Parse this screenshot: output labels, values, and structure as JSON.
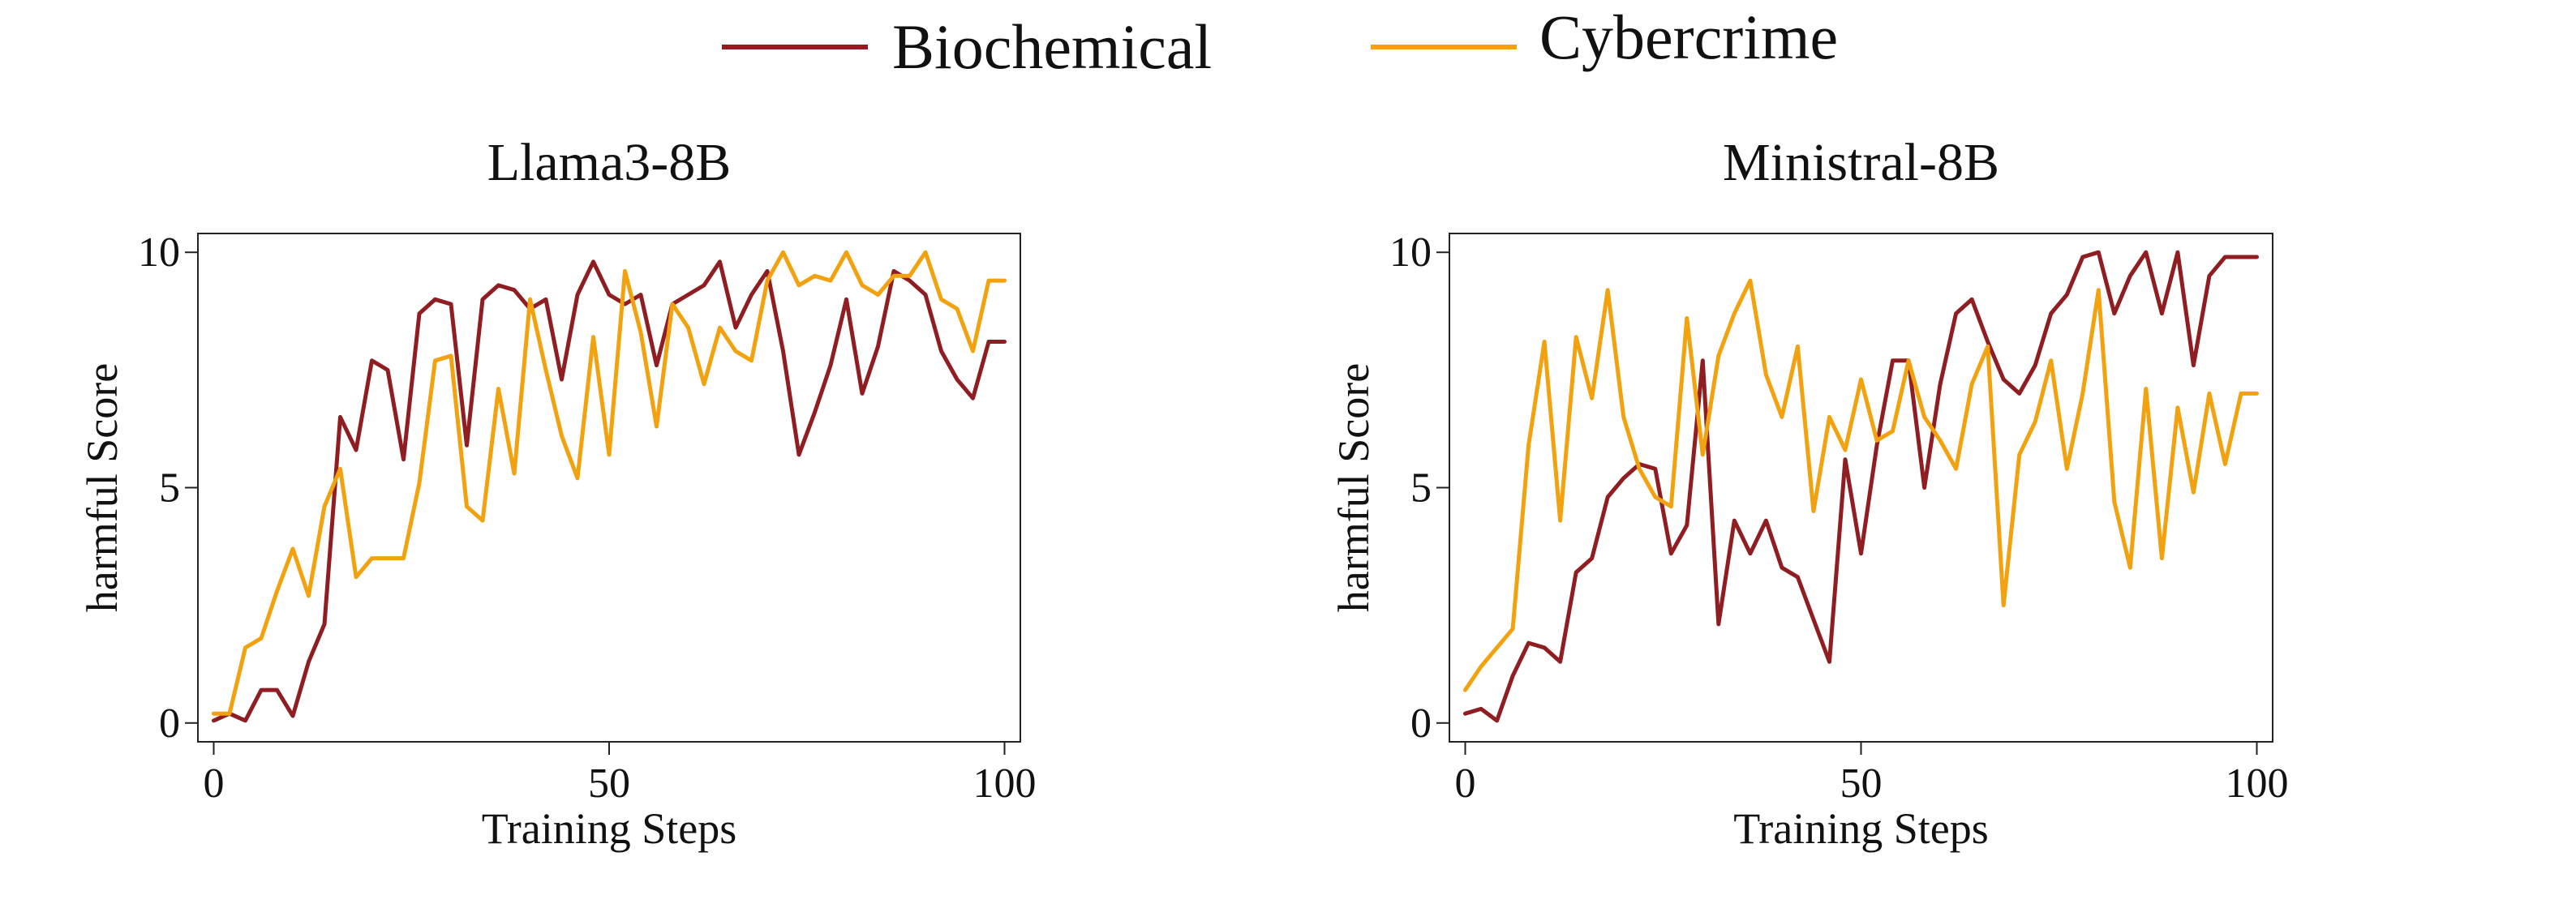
{
  "legend": [
    {
      "name": "Biochemical",
      "color": "#8f1d21"
    },
    {
      "name": "Cybercrime",
      "color": "#f2a10f"
    }
  ],
  "chart_data": [
    {
      "type": "line",
      "title": "Llama3-8B",
      "xlabel": "Training Steps",
      "ylabel": "harmful Score",
      "xlim": [
        -2,
        102
      ],
      "ylim": [
        -0.4,
        10.4
      ],
      "xticks": [
        0,
        50,
        100
      ],
      "yticks": [
        0,
        5,
        10
      ],
      "grid": false,
      "legend_position": "top-center",
      "series": [
        {
          "name": "Biochemical",
          "color": "#8f1d21",
          "x": [
            0,
            2,
            4,
            6,
            8,
            10,
            12,
            14,
            16,
            18,
            20,
            22,
            24,
            26,
            28,
            30,
            32,
            34,
            36,
            38,
            40,
            42,
            44,
            46,
            48,
            50,
            52,
            54,
            56,
            58,
            60,
            62,
            64,
            66,
            68,
            70,
            72,
            74,
            76,
            78,
            80,
            82,
            84,
            86,
            88,
            90,
            92,
            94,
            96,
            98,
            100
          ],
          "y": [
            0.05,
            0.2,
            0.05,
            0.7,
            0.7,
            0.15,
            1.3,
            2.1,
            6.5,
            5.8,
            7.7,
            7.5,
            5.6,
            8.7,
            9,
            8.9,
            5.9,
            9,
            9.3,
            9.2,
            8.8,
            9,
            7.3,
            9.1,
            9.8,
            9.1,
            8.9,
            9.1,
            7.6,
            8.9,
            9.1,
            9.3,
            9.8,
            8.4,
            9.1,
            9.6,
            7.9,
            5.7,
            6.6,
            7.6,
            9,
            7,
            8,
            9.6,
            9.4,
            9.1,
            7.9,
            7.3,
            6.9,
            8.1,
            8.1
          ]
        },
        {
          "name": "Cybercrime",
          "color": "#f2a10f",
          "x": [
            0,
            2,
            4,
            6,
            8,
            10,
            12,
            14,
            16,
            18,
            20,
            22,
            24,
            26,
            28,
            30,
            32,
            34,
            36,
            38,
            40,
            42,
            44,
            46,
            48,
            50,
            52,
            54,
            56,
            58,
            60,
            62,
            64,
            66,
            68,
            70,
            72,
            74,
            76,
            78,
            80,
            82,
            84,
            86,
            88,
            90,
            92,
            94,
            96,
            98,
            100
          ],
          "y": [
            0.2,
            0.2,
            1.6,
            1.8,
            2.8,
            3.7,
            2.7,
            4.6,
            5.4,
            3.1,
            3.5,
            3.5,
            3.5,
            5.1,
            7.7,
            7.8,
            4.6,
            4.3,
            7.1,
            5.3,
            9,
            7.5,
            6.1,
            5.2,
            8.2,
            5.7,
            9.6,
            8.3,
            6.3,
            8.9,
            8.4,
            7.2,
            8.4,
            7.9,
            7.7,
            9.4,
            10,
            9.3,
            9.5,
            9.4,
            10,
            9.3,
            9.1,
            9.5,
            9.5,
            10,
            9,
            8.8,
            7.9,
            9.4,
            9.4
          ]
        }
      ]
    },
    {
      "type": "line",
      "title": "Ministral-8B",
      "xlabel": "Training Steps",
      "ylabel": "harmful Score",
      "xlim": [
        -2,
        102
      ],
      "ylim": [
        -0.4,
        10.4
      ],
      "xticks": [
        0,
        50,
        100
      ],
      "yticks": [
        0,
        5,
        10
      ],
      "grid": false,
      "legend_position": "top-center",
      "series": [
        {
          "name": "Biochemical",
          "color": "#8f1d21",
          "x": [
            0,
            2,
            4,
            6,
            8,
            10,
            12,
            14,
            16,
            18,
            20,
            22,
            24,
            26,
            28,
            30,
            32,
            34,
            36,
            38,
            40,
            42,
            44,
            46,
            48,
            50,
            52,
            54,
            56,
            58,
            60,
            62,
            64,
            66,
            68,
            70,
            72,
            74,
            76,
            78,
            80,
            82,
            84,
            86,
            88,
            90,
            92,
            94,
            96,
            98,
            100
          ],
          "y": [
            0.2,
            0.3,
            0.05,
            1,
            1.7,
            1.6,
            1.3,
            3.2,
            3.5,
            4.8,
            5.2,
            5.5,
            5.4,
            3.6,
            4.2,
            7.7,
            2.1,
            4.3,
            3.6,
            4.3,
            3.3,
            3.1,
            2.2,
            1.3,
            5.6,
            3.6,
            5.9,
            7.7,
            7.7,
            5,
            7.2,
            8.7,
            9,
            8.1,
            7.3,
            7,
            7.6,
            8.7,
            9.1,
            9.9,
            10,
            8.7,
            9.5,
            10,
            8.7,
            10,
            7.6,
            9.5,
            9.9,
            9.9,
            9.9
          ]
        },
        {
          "name": "Cybercrime",
          "color": "#f2a10f",
          "x": [
            0,
            2,
            4,
            6,
            8,
            10,
            12,
            14,
            16,
            18,
            20,
            22,
            24,
            26,
            28,
            30,
            32,
            34,
            36,
            38,
            40,
            42,
            44,
            46,
            48,
            50,
            52,
            54,
            56,
            58,
            60,
            62,
            64,
            66,
            68,
            70,
            72,
            74,
            76,
            78,
            80,
            82,
            84,
            86,
            88,
            90,
            92,
            94,
            96,
            98,
            100
          ],
          "y": [
            0.7,
            1.2,
            1.6,
            2,
            5.9,
            8.1,
            4.3,
            8.2,
            6.9,
            9.2,
            6.5,
            5.4,
            4.8,
            4.6,
            8.6,
            5.7,
            7.8,
            8.7,
            9.4,
            7.4,
            6.5,
            8,
            4.5,
            6.5,
            5.8,
            7.3,
            6,
            6.2,
            7.7,
            6.5,
            6,
            5.4,
            7.2,
            8,
            2.5,
            5.7,
            6.4,
            7.7,
            5.4,
            7,
            9.2,
            4.7,
            3.3,
            7.1,
            3.5,
            6.7,
            4.9,
            7,
            5.5,
            7,
            7
          ]
        }
      ]
    }
  ]
}
